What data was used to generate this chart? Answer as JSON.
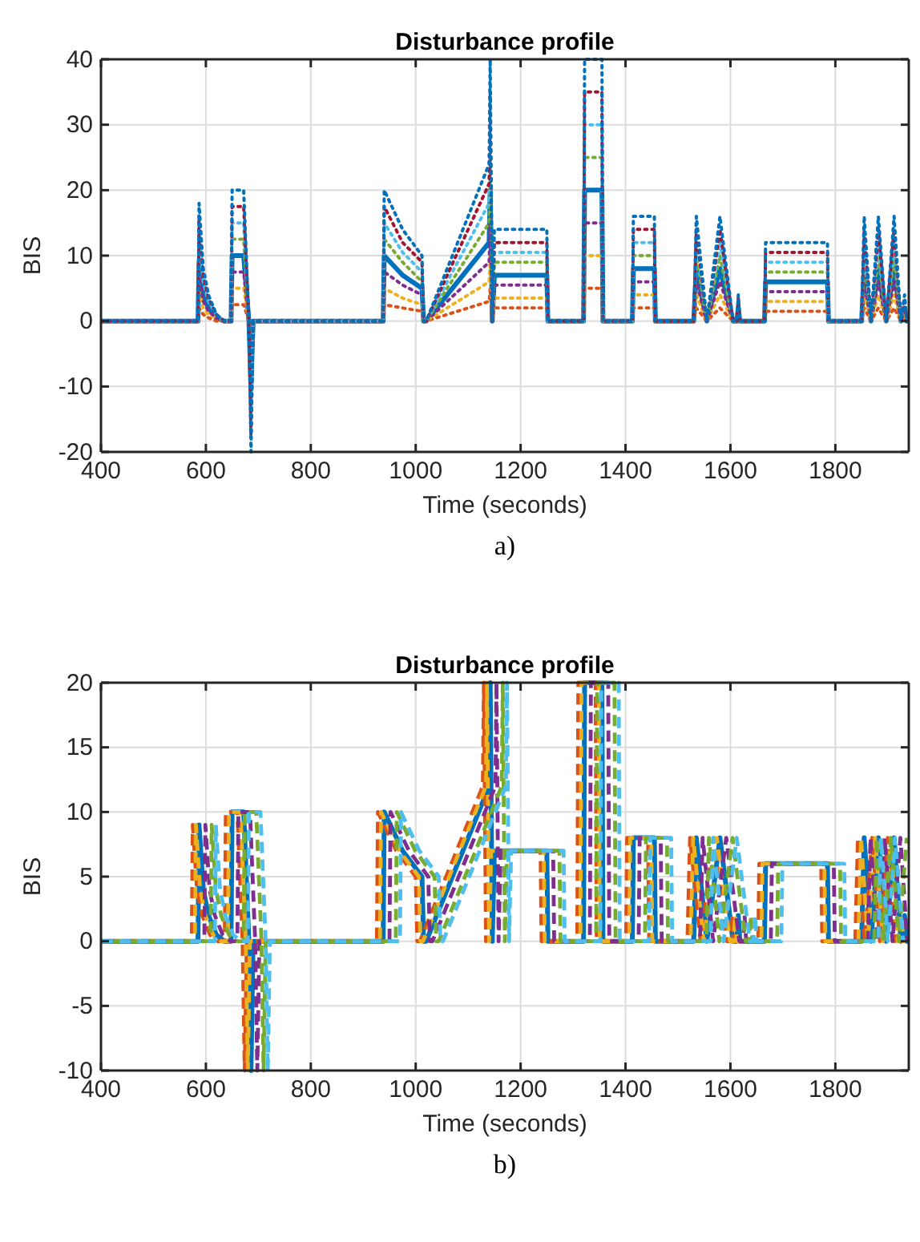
{
  "chart_data": [
    {
      "type": "line",
      "title": "Disturbance profile",
      "xlabel": "Time (seconds)",
      "ylabel": "BIS",
      "annotations": [
        "a)"
      ],
      "grid": true,
      "xlim": [
        400,
        1940
      ],
      "xticks": [
        400,
        600,
        800,
        1000,
        1200,
        1400,
        1600,
        1800
      ],
      "ylim": [
        -20,
        40
      ],
      "yticks": [
        -20,
        -10,
        0,
        10,
        20,
        30,
        40
      ],
      "x": [
        400,
        585,
        587,
        595,
        605,
        620,
        635,
        648,
        650,
        672,
        682,
        686,
        690,
        938,
        940,
        975,
        1012,
        1015,
        1020,
        1140,
        1142,
        1146,
        1150,
        1250,
        1252,
        1320,
        1322,
        1355,
        1357,
        1413,
        1415,
        1455,
        1457,
        1530,
        1535,
        1555,
        1580,
        1605,
        1612,
        1615,
        1618,
        1665,
        1667,
        1785,
        1787,
        1850,
        1855,
        1868,
        1882,
        1897,
        1912,
        1925,
        1932,
        1936,
        1940
      ],
      "series": [
        {
          "color": "#0072bd",
          "line_style": "solid",
          "values": [
            0,
            0,
            9,
            4,
            2,
            0.5,
            0,
            0,
            10,
            10,
            0,
            -10,
            0,
            0,
            10,
            7,
            5,
            0,
            0,
            12,
            20,
            0,
            7,
            7,
            0,
            0,
            20,
            20,
            0,
            0,
            8,
            8,
            0,
            0,
            8,
            0,
            8,
            0,
            0,
            2,
            0,
            0,
            6,
            6,
            0,
            0,
            8,
            0,
            8,
            0,
            8,
            0,
            2,
            0,
            0
          ]
        },
        {
          "color": "#d95319",
          "line_style": "dotted",
          "values": [
            0,
            0,
            2,
            1,
            0.5,
            0,
            0,
            0,
            2.5,
            2.5,
            0,
            -2.5,
            0,
            0,
            2.5,
            2,
            1.5,
            0,
            0,
            3,
            5,
            0,
            2,
            2,
            0,
            0,
            5,
            5,
            0,
            0,
            2,
            2,
            0,
            0,
            2,
            0,
            2,
            0,
            0,
            0.5,
            0,
            0,
            1.5,
            1.5,
            0,
            0,
            2,
            0,
            2,
            0,
            2,
            0,
            0.5,
            0,
            0
          ]
        },
        {
          "color": "#edb120",
          "line_style": "dotted",
          "values": [
            0,
            0,
            4.5,
            2,
            1,
            0.5,
            0,
            0,
            5,
            5,
            0,
            -5,
            0,
            0,
            5,
            3.5,
            2.5,
            0,
            0,
            6,
            10,
            0,
            3.5,
            3.5,
            0,
            0,
            10,
            10,
            0,
            0,
            4,
            4,
            0,
            0,
            4,
            0,
            4,
            0,
            0,
            1,
            0,
            0,
            3,
            3,
            0,
            0,
            4,
            0,
            4,
            0,
            4,
            0,
            1,
            0,
            0
          ]
        },
        {
          "color": "#7e2f8e",
          "line_style": "dotted",
          "values": [
            0,
            0,
            7,
            3,
            1.5,
            0.5,
            0,
            0,
            7.5,
            7.5,
            0,
            -7.5,
            0,
            0,
            7.5,
            5.5,
            4,
            0,
            0,
            9,
            15,
            0,
            5.5,
            5.5,
            0,
            0,
            15,
            15,
            0,
            0,
            6,
            6,
            0,
            0,
            6,
            0,
            6,
            0,
            0,
            1.5,
            0,
            0,
            4.5,
            4.5,
            0,
            0,
            6,
            0,
            6,
            0,
            6,
            0,
            1.5,
            null,
            null
          ]
        },
        {
          "color": "#77ac30",
          "line_style": "dotted",
          "values": [
            null,
            null,
            null,
            null,
            null,
            null,
            null,
            null,
            12.5,
            12.5,
            0,
            -12.5,
            0,
            0,
            12.5,
            9,
            6,
            0,
            0,
            15,
            25,
            0,
            9,
            9,
            0,
            0,
            25,
            25,
            0,
            0,
            10,
            10,
            0,
            0,
            10,
            0,
            10,
            0,
            0,
            2.5,
            0,
            0,
            7.5,
            7.5,
            0,
            0,
            10,
            0,
            10,
            0,
            10,
            0,
            null,
            null,
            null
          ]
        },
        {
          "color": "#4dbeee",
          "line_style": "dotted",
          "values": [
            0,
            0,
            13.5,
            6,
            3,
            1,
            0,
            0,
            15,
            15,
            0,
            -15,
            0,
            0,
            15,
            10.5,
            7.5,
            0,
            0,
            18,
            30,
            0,
            10.5,
            10.5,
            0,
            0,
            30,
            30,
            0,
            0,
            12,
            12,
            0,
            0,
            12,
            0,
            12,
            0,
            0,
            3,
            0,
            0,
            9,
            9,
            0,
            0,
            12,
            0,
            12,
            0,
            12,
            0,
            3,
            0,
            0
          ]
        },
        {
          "color": "#a2142f",
          "line_style": "dotted",
          "values": [
            0,
            0,
            16,
            7,
            3.5,
            1,
            0,
            0,
            17.5,
            17.5,
            0,
            -17.5,
            0,
            0,
            17.5,
            12,
            9,
            0,
            0,
            21,
            35,
            0,
            12,
            12,
            0,
            0,
            35,
            35,
            0,
            0,
            14,
            14,
            0,
            0,
            14,
            0,
            14,
            0,
            0,
            3.5,
            0,
            0,
            10.5,
            10.5,
            0,
            0,
            14,
            0,
            14,
            0,
            14,
            0,
            3.5,
            0,
            0
          ]
        },
        {
          "color": "#0072bd",
          "line_style": "dotted",
          "values": [
            0,
            0,
            18,
            8,
            4,
            1,
            0,
            0,
            20,
            20,
            0,
            -20,
            0,
            0,
            20,
            14,
            10,
            0,
            0,
            24,
            40,
            0,
            14,
            14,
            0,
            0,
            40,
            40,
            0,
            0,
            16,
            16,
            0,
            0,
            16,
            0,
            16,
            0,
            0,
            4,
            0,
            0,
            12,
            12,
            0,
            0,
            16,
            0,
            16,
            0,
            16,
            0,
            4,
            0,
            0
          ]
        }
      ]
    },
    {
      "type": "line",
      "title": "Disturbance profile",
      "xlabel": "Time (seconds)",
      "ylabel": "BIS",
      "annotations": [
        "b)"
      ],
      "grid": true,
      "xlim": [
        400,
        1940
      ],
      "xticks": [
        400,
        600,
        800,
        1000,
        1200,
        1400,
        1600,
        1800
      ],
      "ylim": [
        -10,
        20
      ],
      "yticks": [
        -10,
        -5,
        0,
        5,
        10,
        15,
        20
      ],
      "series": [
        {
          "color": "#0072bd",
          "line_style": "solid",
          "x": [
            400,
            585,
            587,
            595,
            605,
            620,
            635,
            648,
            650,
            672,
            682,
            686,
            690,
            938,
            940,
            975,
            1012,
            1015,
            1020,
            1140,
            1142,
            1146,
            1150,
            1250,
            1252,
            1320,
            1322,
            1355,
            1357,
            1413,
            1415,
            1455,
            1457,
            1530,
            1535,
            1555,
            1580,
            1605,
            1612,
            1615,
            1618,
            1665,
            1667,
            1785,
            1787,
            1850,
            1855,
            1868,
            1882,
            1897,
            1912,
            1925,
            1932,
            1936,
            1940
          ],
          "values": [
            0,
            0,
            9,
            4,
            2,
            0.5,
            0,
            0,
            10,
            10,
            0,
            -10,
            0,
            0,
            10,
            7,
            5,
            0,
            0,
            12,
            20,
            0,
            7,
            7,
            0,
            0,
            20,
            20,
            0,
            0,
            8,
            8,
            0,
            0,
            8,
            0,
            8,
            0,
            0,
            2,
            0,
            0,
            6,
            6,
            0,
            0,
            8,
            0,
            8,
            0,
            8,
            0,
            2,
            0,
            0
          ]
        },
        {
          "color": "#d95319",
          "line_style": "dashed",
          "x": [
            400,
            573,
            575,
            583,
            593,
            608,
            623,
            636,
            638,
            660,
            670,
            674,
            678,
            926,
            928,
            963,
            1000,
            1003,
            1008,
            1128,
            1130,
            1134,
            1138,
            1238,
            1240,
            1308,
            1310,
            1343,
            1345,
            1401,
            1403,
            1443,
            1445,
            1518,
            1523,
            1543,
            1568,
            1593,
            1600,
            1603,
            1606,
            1653,
            1655,
            1773,
            1775,
            1838,
            1843,
            1856,
            1870,
            1885,
            1900,
            1913,
            1920,
            1924,
            1928
          ],
          "values": [
            0,
            0,
            9,
            4,
            2,
            0.5,
            0,
            0,
            10,
            10,
            0,
            -10,
            0,
            0,
            10,
            7,
            5,
            0,
            0,
            12,
            20,
            0,
            7,
            7,
            0,
            0,
            20,
            20,
            0,
            0,
            8,
            8,
            0,
            0,
            8,
            0,
            8,
            0,
            0,
            2,
            0,
            0,
            6,
            6,
            0,
            0,
            8,
            0,
            8,
            0,
            8,
            0,
            2,
            0,
            0
          ]
        },
        {
          "color": "#edb120",
          "line_style": "dashed",
          "x": [
            400,
            579,
            581,
            589,
            599,
            614,
            629,
            642,
            644,
            666,
            676,
            680,
            684,
            932,
            934,
            969,
            1006,
            1009,
            1014,
            1134,
            1136,
            1140,
            1144,
            1244,
            1246,
            1314,
            1316,
            1349,
            1351,
            1407,
            1409,
            1449,
            1451,
            1524,
            1529,
            1549,
            1574,
            1599,
            1606,
            1609,
            1612,
            1659,
            1661,
            1779,
            1781,
            1844,
            1849,
            1862,
            1876,
            1891,
            1906,
            1919,
            1926,
            1930,
            1934
          ],
          "values": [
            0,
            0,
            9,
            4,
            2,
            0.5,
            0,
            0,
            10,
            10,
            0,
            -10,
            0,
            0,
            10,
            7,
            5,
            0,
            0,
            12,
            20,
            0,
            7,
            7,
            0,
            0,
            20,
            20,
            0,
            0,
            8,
            8,
            0,
            0,
            8,
            0,
            8,
            0,
            0,
            2,
            0,
            0,
            6,
            6,
            0,
            0,
            8,
            0,
            8,
            0,
            8,
            0,
            2,
            0,
            0
          ]
        },
        {
          "color": "#7e2f8e",
          "line_style": "dashed",
          "x": [
            400,
            597,
            599,
            607,
            617,
            632,
            647,
            660,
            662,
            684,
            694,
            698,
            702,
            950,
            952,
            987,
            1024,
            1027,
            1032,
            1152,
            1154,
            1158,
            1162,
            1262,
            1264,
            1332,
            1334,
            1367,
            1369,
            1425,
            1427,
            1467,
            1469,
            1542,
            1547,
            1567,
            1592,
            1617,
            1624,
            1627,
            1630,
            1677,
            1679,
            1797,
            1799,
            1862,
            1867,
            1880,
            1894,
            1909,
            1924,
            1937
          ],
          "values": [
            0,
            0,
            9,
            4,
            2,
            0.5,
            0,
            0,
            10,
            10,
            0,
            -10,
            0,
            0,
            10,
            7,
            5,
            0,
            0,
            12,
            20,
            0,
            7,
            7,
            0,
            0,
            20,
            20,
            0,
            0,
            8,
            8,
            0,
            0,
            8,
            0,
            8,
            0,
            0,
            2,
            0,
            0,
            6,
            6,
            0,
            0,
            8,
            0,
            8,
            0,
            8,
            0
          ]
        },
        {
          "color": "#77ac30",
          "line_style": "dashed",
          "x": [
            400,
            609,
            611,
            619,
            629,
            644,
            659,
            672,
            674,
            696,
            706,
            710,
            714,
            962,
            964,
            999,
            1036,
            1039,
            1044,
            1164,
            1166,
            1170,
            1174,
            1274,
            1276,
            1344,
            1346,
            1379,
            1381,
            1437,
            1439,
            1479,
            1481,
            1554,
            1559,
            1579,
            1604,
            1629,
            1636,
            1639,
            1642,
            1689,
            1691,
            1809,
            1811,
            1874,
            1879,
            1892,
            1906,
            1921,
            1936
          ],
          "values": [
            0,
            0,
            9,
            4,
            2,
            0.5,
            0,
            0,
            10,
            10,
            0,
            -10,
            0,
            0,
            10,
            7,
            5,
            0,
            0,
            12,
            20,
            0,
            7,
            7,
            0,
            0,
            20,
            20,
            0,
            0,
            8,
            8,
            0,
            0,
            8,
            0,
            8,
            0,
            0,
            2,
            0,
            0,
            6,
            6,
            0,
            0,
            8,
            0,
            8,
            0,
            8
          ]
        },
        {
          "color": "#4dbeee",
          "line_style": "dashed",
          "x": [
            400,
            617,
            619,
            627,
            637,
            652,
            667,
            680,
            682,
            704,
            714,
            718,
            722,
            970,
            972,
            1007,
            1044,
            1047,
            1052,
            1172,
            1174,
            1178,
            1182,
            1282,
            1284,
            1352,
            1354,
            1387,
            1389,
            1445,
            1447,
            1487,
            1489,
            1562,
            1567,
            1587,
            1612,
            1637,
            1644,
            1647,
            1650,
            1697,
            1699,
            1817,
            1819,
            1882,
            1887,
            1900,
            1914,
            1929
          ],
          "values": [
            0,
            0,
            9,
            4,
            2,
            0.5,
            0,
            0,
            10,
            10,
            0,
            -10,
            0,
            0,
            10,
            7,
            5,
            0,
            0,
            12,
            20,
            0,
            7,
            7,
            0,
            0,
            20,
            20,
            0,
            0,
            8,
            8,
            0,
            0,
            8,
            0,
            8,
            0,
            0,
            2,
            0,
            0,
            6,
            6,
            0,
            0,
            8,
            0,
            8,
            0
          ]
        }
      ]
    }
  ]
}
